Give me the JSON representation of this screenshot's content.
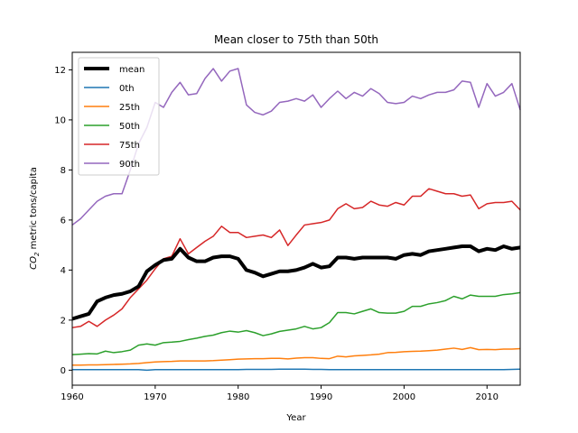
{
  "chart_data": {
    "type": "line",
    "title": "Mean closer to 75th than 50th",
    "xlabel": "Year",
    "ylabel_main": "CO",
    "ylabel_sub": "2",
    "ylabel_rest": " metric tons/capita",
    "xlim": [
      1960,
      2014
    ],
    "ylim": [
      -0.6,
      12.7
    ],
    "xticks": [
      1960,
      1970,
      1980,
      1990,
      2000,
      2010
    ],
    "yticks": [
      0,
      2,
      4,
      6,
      8,
      10,
      12
    ],
    "grid": false,
    "legend_position": "top-left",
    "x": [
      1960,
      1961,
      1962,
      1963,
      1964,
      1965,
      1966,
      1967,
      1968,
      1969,
      1970,
      1971,
      1972,
      1973,
      1974,
      1975,
      1976,
      1977,
      1978,
      1979,
      1980,
      1981,
      1982,
      1983,
      1984,
      1985,
      1986,
      1987,
      1988,
      1989,
      1990,
      1991,
      1992,
      1993,
      1994,
      1995,
      1996,
      1997,
      1998,
      1999,
      2000,
      2001,
      2002,
      2003,
      2004,
      2005,
      2006,
      2007,
      2008,
      2009,
      2010,
      2011,
      2012,
      2013,
      2014
    ],
    "series": [
      {
        "name": "mean",
        "color": "#000000",
        "values": [
          2.05,
          2.15,
          2.25,
          2.75,
          2.9,
          3.0,
          3.05,
          3.15,
          3.35,
          3.95,
          4.2,
          4.4,
          4.45,
          4.85,
          4.5,
          4.35,
          4.35,
          4.5,
          4.55,
          4.55,
          4.45,
          4.0,
          3.9,
          3.75,
          3.85,
          3.95,
          3.95,
          4.0,
          4.1,
          4.25,
          4.1,
          4.15,
          4.5,
          4.5,
          4.45,
          4.5,
          4.5,
          4.5,
          4.5,
          4.45,
          4.6,
          4.65,
          4.6,
          4.75,
          4.8,
          4.85,
          4.9,
          4.95,
          4.95,
          4.75,
          4.85,
          4.8,
          4.95,
          4.85,
          4.9
        ]
      },
      {
        "name": "0th",
        "color": "#1f77b4",
        "values": [
          0.02,
          0.02,
          0.02,
          0.02,
          0.02,
          0.02,
          0.02,
          0.02,
          0.02,
          0.0,
          0.02,
          0.02,
          0.02,
          0.02,
          0.02,
          0.02,
          0.02,
          0.02,
          0.02,
          0.02,
          0.02,
          0.03,
          0.03,
          0.03,
          0.03,
          0.04,
          0.04,
          0.04,
          0.04,
          0.03,
          0.03,
          0.02,
          0.02,
          0.02,
          0.02,
          0.02,
          0.02,
          0.02,
          0.02,
          0.02,
          0.02,
          0.02,
          0.02,
          0.02,
          0.02,
          0.02,
          0.02,
          0.02,
          0.02,
          0.02,
          0.02,
          0.02,
          0.02,
          0.03,
          0.04
        ]
      },
      {
        "name": "25th",
        "color": "#ff7f0e",
        "values": [
          0.2,
          0.2,
          0.21,
          0.21,
          0.22,
          0.23,
          0.24,
          0.25,
          0.27,
          0.3,
          0.33,
          0.34,
          0.35,
          0.37,
          0.37,
          0.37,
          0.37,
          0.38,
          0.4,
          0.42,
          0.44,
          0.45,
          0.46,
          0.46,
          0.47,
          0.47,
          0.45,
          0.48,
          0.5,
          0.5,
          0.47,
          0.46,
          0.56,
          0.53,
          0.57,
          0.59,
          0.61,
          0.64,
          0.7,
          0.71,
          0.74,
          0.75,
          0.76,
          0.78,
          0.8,
          0.84,
          0.88,
          0.83,
          0.9,
          0.82,
          0.83,
          0.82,
          0.84,
          0.84,
          0.86
        ]
      },
      {
        "name": "50th",
        "color": "#2ca02c",
        "values": [
          0.62,
          0.64,
          0.66,
          0.65,
          0.76,
          0.7,
          0.74,
          0.8,
          1.0,
          1.05,
          1.0,
          1.1,
          1.12,
          1.15,
          1.22,
          1.28,
          1.35,
          1.4,
          1.5,
          1.56,
          1.52,
          1.58,
          1.5,
          1.38,
          1.45,
          1.55,
          1.6,
          1.65,
          1.75,
          1.65,
          1.7,
          1.9,
          2.3,
          2.3,
          2.25,
          2.35,
          2.45,
          2.3,
          2.28,
          2.28,
          2.35,
          2.55,
          2.55,
          2.65,
          2.7,
          2.78,
          2.95,
          2.85,
          3.0,
          2.95,
          2.95,
          2.95,
          3.02,
          3.05,
          3.1
        ]
      },
      {
        "name": "75th",
        "color": "#d62728",
        "values": [
          1.7,
          1.75,
          1.95,
          1.75,
          2.0,
          2.2,
          2.45,
          2.9,
          3.25,
          3.6,
          4.05,
          4.45,
          4.55,
          5.25,
          4.65,
          4.9,
          5.15,
          5.35,
          5.75,
          5.5,
          5.5,
          5.3,
          5.35,
          5.4,
          5.3,
          5.6,
          4.98,
          5.4,
          5.8,
          5.85,
          5.9,
          6.0,
          6.45,
          6.65,
          6.45,
          6.5,
          6.75,
          6.6,
          6.55,
          6.7,
          6.6,
          6.95,
          6.95,
          7.25,
          7.15,
          7.05,
          7.05,
          6.95,
          7.0,
          6.45,
          6.65,
          6.7,
          6.7,
          6.75,
          6.4
        ]
      },
      {
        "name": "90th",
        "color": "#9467bd",
        "values": [
          5.8,
          6.05,
          6.4,
          6.75,
          6.95,
          7.05,
          7.05,
          8.0,
          9.05,
          9.7,
          10.7,
          10.5,
          11.1,
          11.5,
          11.0,
          11.05,
          11.65,
          12.05,
          11.55,
          11.95,
          12.05,
          10.6,
          10.3,
          10.2,
          10.35,
          10.7,
          10.75,
          10.85,
          10.75,
          11.0,
          10.5,
          10.85,
          11.15,
          10.85,
          11.1,
          10.95,
          11.25,
          11.05,
          10.7,
          10.65,
          10.7,
          10.95,
          10.85,
          11.0,
          11.1,
          11.1,
          11.2,
          11.55,
          11.5,
          10.5,
          11.45,
          10.95,
          11.1,
          11.45,
          10.4
        ]
      }
    ]
  }
}
